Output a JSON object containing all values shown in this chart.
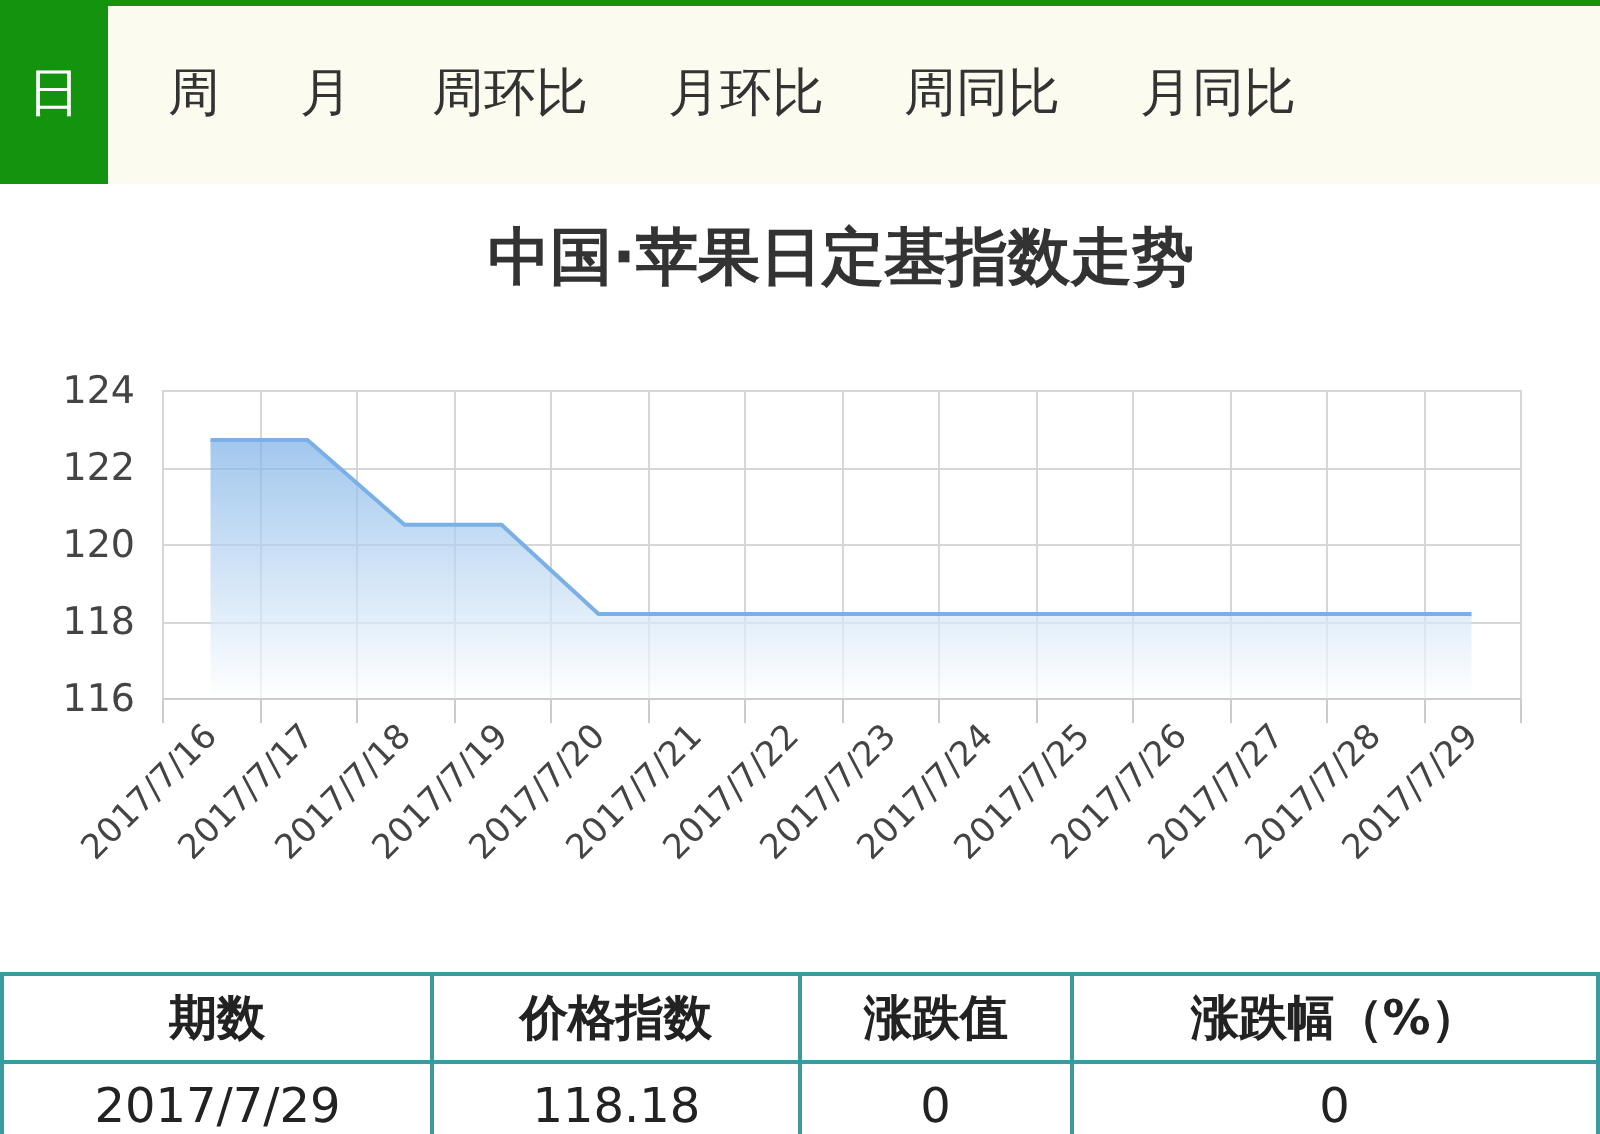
{
  "chart_data": {
    "type": "area",
    "title": "中国·苹果日定基指数走势",
    "categories": [
      "2017/7/16",
      "2017/7/17",
      "2017/7/18",
      "2017/7/19",
      "2017/7/20",
      "2017/7/21",
      "2017/7/22",
      "2017/7/23",
      "2017/7/24",
      "2017/7/25",
      "2017/7/26",
      "2017/7/27",
      "2017/7/28",
      "2017/7/29"
    ],
    "series": [
      {
        "color": "#7ab0e6",
        "values": [
          122.7,
          122.7,
          120.5,
          120.5,
          118.18,
          118.18,
          118.18,
          118.18,
          118.18,
          118.18,
          118.18,
          118.18,
          118.18,
          118.18
        ]
      }
    ],
    "ylim": [
      116,
      124
    ],
    "yticks": [
      116,
      118,
      120,
      122,
      124
    ],
    "grid": true,
    "annotations": [
      "日",
      "周",
      "月",
      "周环比",
      "月环比",
      "周同比",
      "月同比",
      "期数",
      "价格指数",
      "涨跌值",
      "涨跌幅（%）",
      "2017/7/29",
      "118.18",
      "0",
      "0"
    ]
  }
}
